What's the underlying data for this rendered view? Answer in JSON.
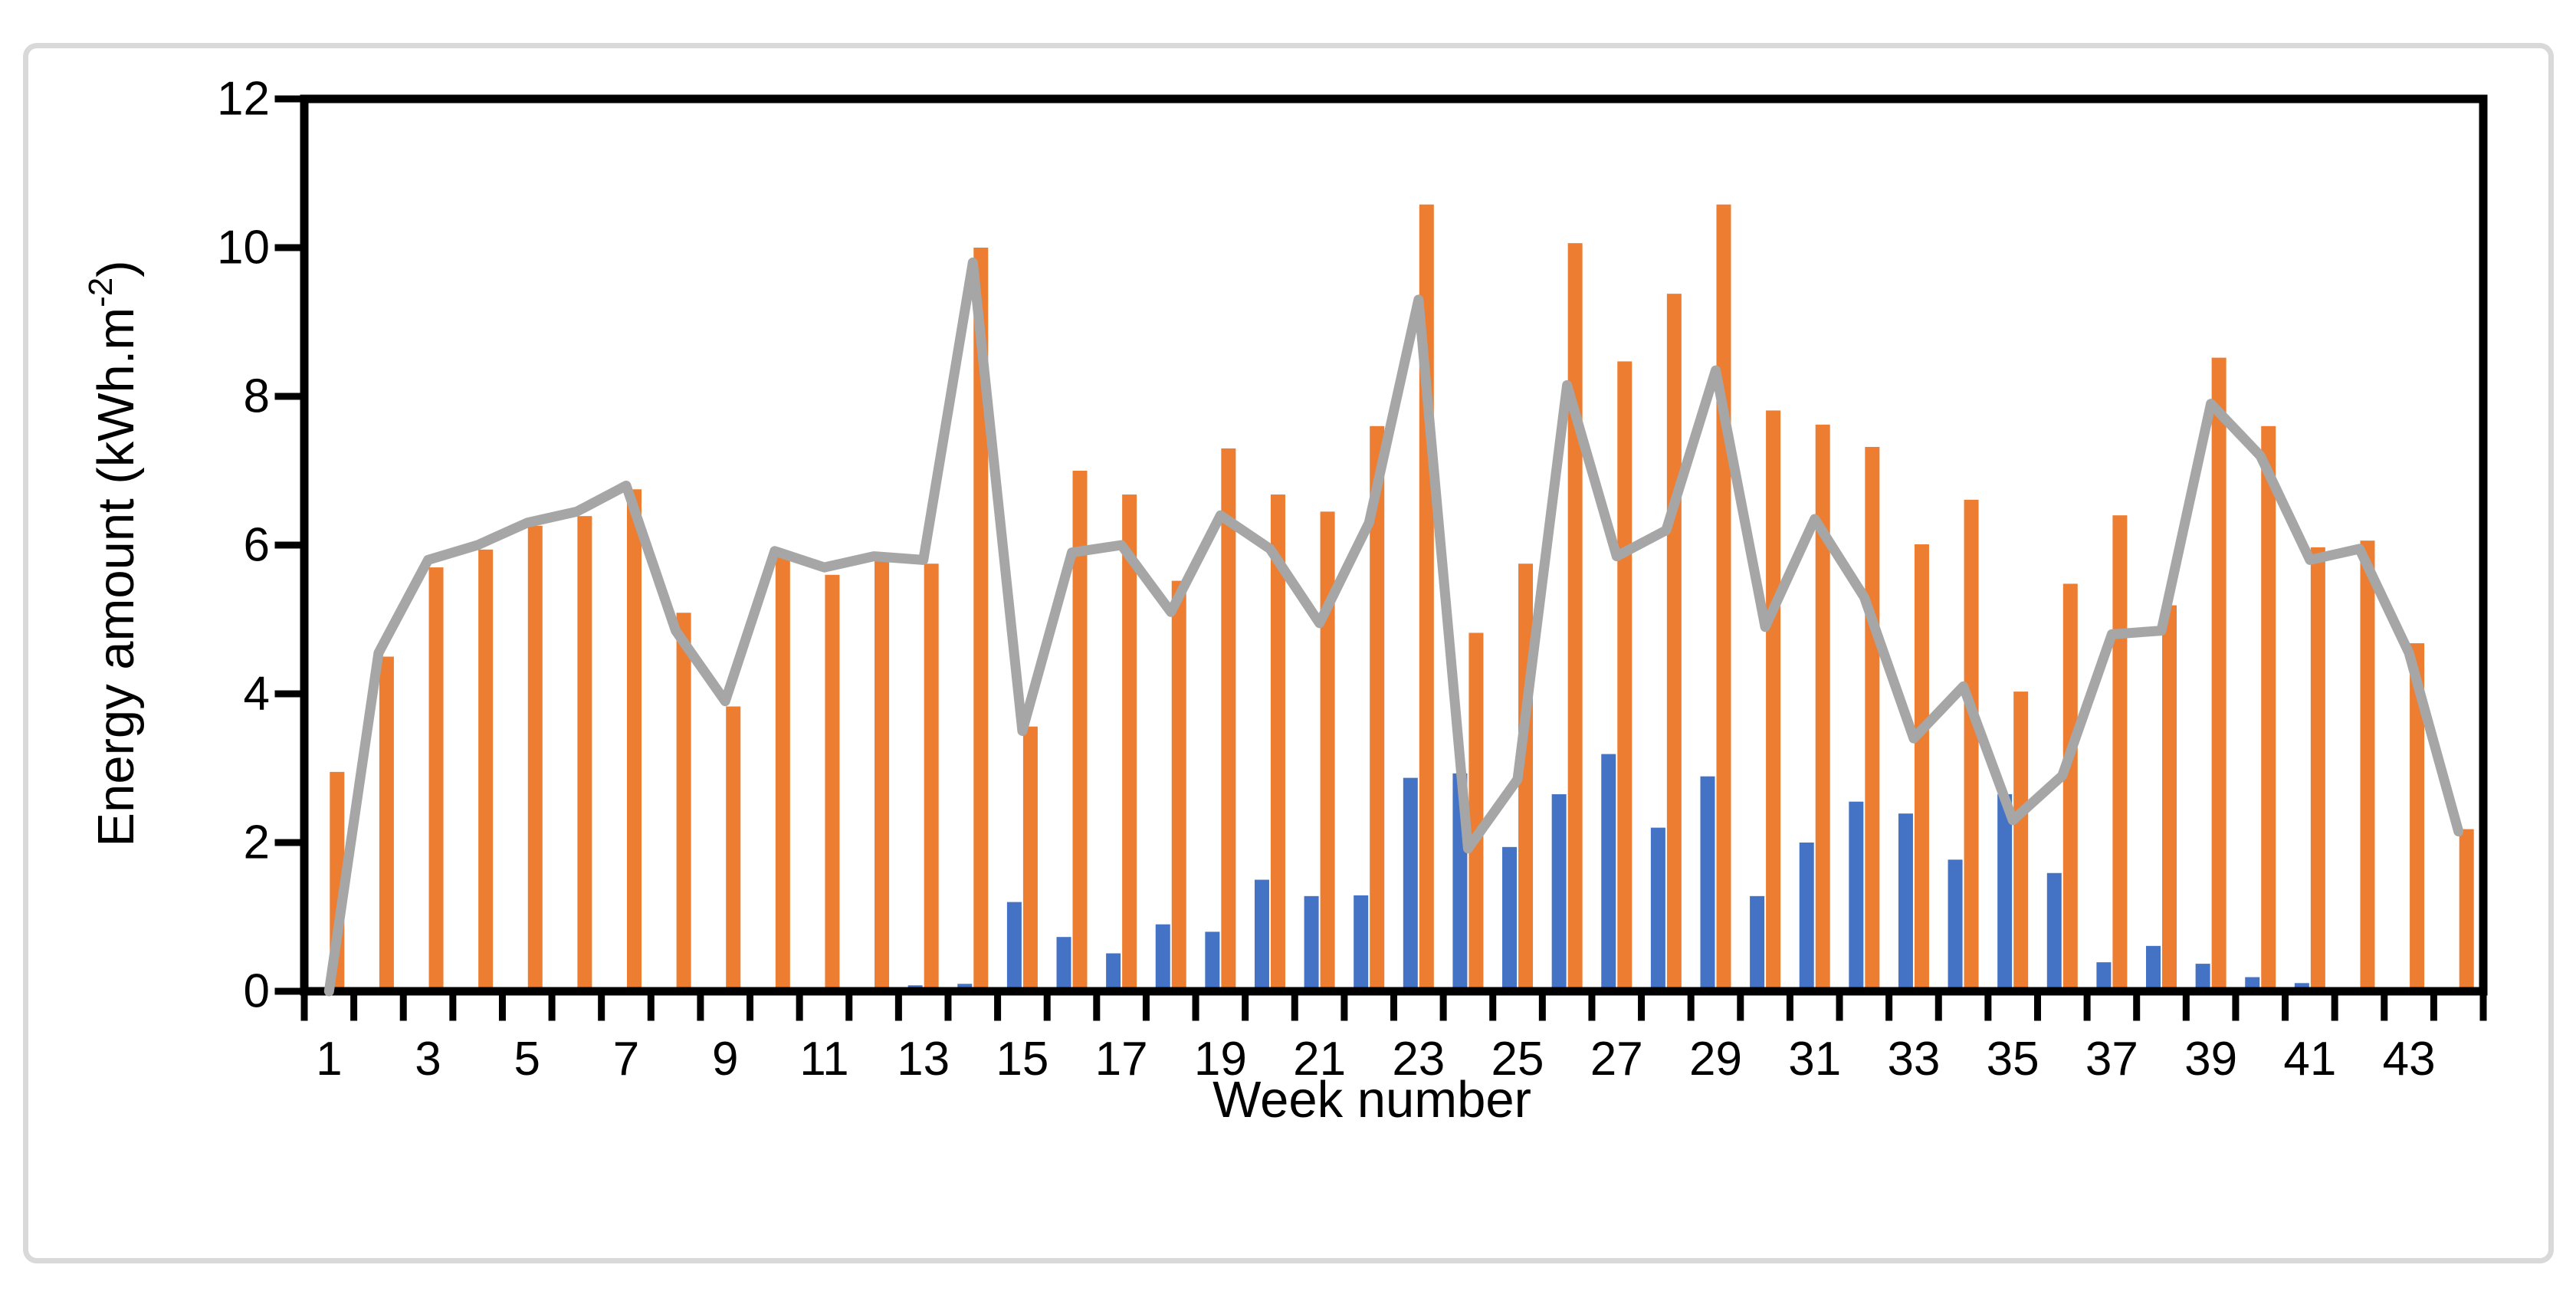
{
  "figure": {
    "title": "",
    "frame_color": "#d9d9d9",
    "background": "#ffffff"
  },
  "chart_data": {
    "type": "bar",
    "subtype": "clustered-bars-with-line-overlay",
    "title": "",
    "xlabel": "Week number",
    "ylabel": "Energy amount (kWh.m⁻²)",
    "ylabel_parts": {
      "prefix": "Energy amount (kWh.m",
      "sup": "-2",
      "suffix": ")"
    },
    "ylim": [
      0,
      12
    ],
    "yticks": [
      0,
      2,
      4,
      6,
      8,
      10,
      12
    ],
    "xtick_label_step": 2,
    "grid": "off",
    "legend": "none",
    "axis_color": "#000000",
    "categories": [
      1,
      2,
      3,
      4,
      5,
      6,
      7,
      8,
      9,
      10,
      11,
      12,
      13,
      14,
      15,
      16,
      17,
      18,
      19,
      20,
      21,
      22,
      23,
      24,
      25,
      26,
      27,
      28,
      29,
      30,
      31,
      32,
      33,
      34,
      35,
      36,
      37,
      38,
      39,
      40,
      41,
      42,
      43,
      44
    ],
    "series": [
      {
        "name": "blue-bars",
        "type": "bar",
        "color": "#4472C4",
        "values": [
          0,
          0,
          0,
          0,
          0,
          0,
          0,
          0,
          0,
          0,
          0,
          0,
          0.08,
          0.1,
          1.2,
          0.73,
          0.51,
          0.9,
          0.8,
          1.5,
          1.28,
          1.29,
          2.87,
          2.93,
          1.94,
          2.65,
          3.19,
          2.2,
          2.89,
          1.28,
          2.0,
          2.55,
          2.39,
          1.77,
          2.65,
          1.59,
          0.39,
          0.61,
          0.37,
          0.19,
          0.11,
          0,
          0,
          0
        ]
      },
      {
        "name": "orange-bars",
        "type": "bar",
        "color": "#ED7D31",
        "values": [
          2.95,
          4.5,
          5.7,
          5.94,
          6.26,
          6.39,
          6.75,
          5.09,
          3.83,
          5.85,
          5.6,
          5.85,
          5.75,
          10.0,
          3.56,
          7.0,
          6.68,
          5.52,
          7.3,
          6.68,
          6.45,
          7.6,
          10.58,
          4.82,
          5.75,
          10.06,
          8.47,
          9.38,
          10.58,
          7.81,
          7.62,
          7.32,
          6.01,
          6.61,
          4.03,
          5.48,
          6.4,
          5.19,
          8.52,
          7.6,
          5.97,
          6.06,
          4.68,
          2.18
        ]
      },
      {
        "name": "gray-line",
        "type": "line",
        "color": "#A6A6A6",
        "values": [
          0,
          4.55,
          5.8,
          6.0,
          6.3,
          6.45,
          6.8,
          4.85,
          3.9,
          5.92,
          5.7,
          5.85,
          5.8,
          9.8,
          3.5,
          5.9,
          6.0,
          5.1,
          6.4,
          5.95,
          4.95,
          6.3,
          9.3,
          1.92,
          2.85,
          8.15,
          5.85,
          6.2,
          8.35,
          4.9,
          6.35,
          5.3,
          3.4,
          4.1,
          2.3,
          2.9,
          4.8,
          4.85,
          7.9,
          7.2,
          5.8,
          5.95,
          4.55,
          2.15
        ]
      }
    ]
  }
}
